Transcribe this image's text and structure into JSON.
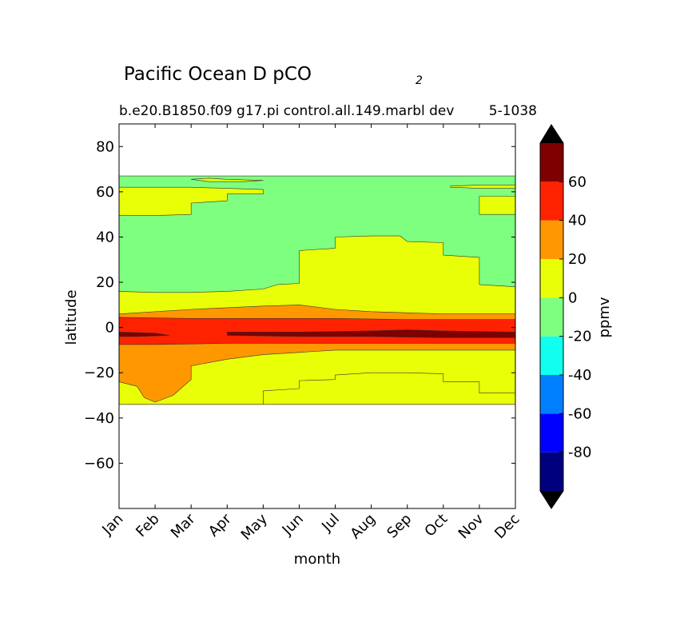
{
  "chart_data": {
    "type": "contourf",
    "title_main": "Pacific Ocean D pCO",
    "title_sub": "2",
    "subtitle_left": "b.e20.B1850.f09 g17.pi control.all.149.marbl dev",
    "subtitle_right": "5-1038",
    "xlabel": "month",
    "ylabel": "latitude",
    "x_ticks": [
      "Jan",
      "Feb",
      "Mar",
      "Apr",
      "May",
      "Jun",
      "Jul",
      "Aug",
      "Sep",
      "Oct",
      "Nov",
      "Dec"
    ],
    "x_range": [
      1,
      12
    ],
    "ylim": [
      -80,
      90
    ],
    "y_ticks": [
      80,
      60,
      40,
      20,
      0,
      -20,
      -40,
      -60
    ],
    "y_tick_labels": [
      "80",
      "60",
      "40",
      "20",
      "0",
      "−20",
      "−40",
      "−60"
    ],
    "data_lat_range": [
      -34,
      67
    ],
    "colorbar": {
      "label": "ppmv",
      "extend": "both",
      "levels": [
        -100,
        -80,
        -60,
        -40,
        -20,
        0,
        20,
        40,
        60,
        80
      ],
      "tick_values": [
        60,
        40,
        20,
        0,
        -20,
        -40,
        -60,
        -80
      ],
      "tick_labels": [
        "60",
        "40",
        "20",
        "0",
        "-20",
        "-40",
        "-60",
        "-80"
      ],
      "colors": [
        "#00007f",
        "#0000ff",
        "#007fff",
        "#10ffef",
        "#7fff7f",
        "#e9ff07",
        "#ff9800",
        "#ff2200",
        "#7f0000"
      ],
      "under_color": "#000000",
      "over_color": "#000000"
    },
    "regions": [
      {
        "name": "north-background",
        "level": "-20 to 0",
        "color": "#7fff7f",
        "points": [
          [
            1,
            67
          ],
          [
            12,
            67
          ],
          [
            12,
            -34
          ],
          [
            1,
            -34
          ]
        ]
      },
      {
        "name": "north-60n-band",
        "level": "0 to 20",
        "color": "#e9ff07",
        "points": [
          [
            1,
            62
          ],
          [
            3,
            62
          ],
          [
            4,
            61.5
          ],
          [
            5,
            61
          ],
          [
            5,
            59
          ],
          [
            4,
            59
          ],
          [
            4,
            56
          ],
          [
            3,
            55
          ],
          [
            3,
            50
          ],
          [
            2,
            49.5
          ],
          [
            1,
            49.5
          ]
        ]
      },
      {
        "name": "north-65n-patch",
        "level": "0 to 20",
        "color": "#e9ff07",
        "points": [
          [
            3,
            65.5
          ],
          [
            3.5,
            66
          ],
          [
            4,
            65.5
          ],
          [
            5,
            65
          ],
          [
            4.5,
            64.5
          ],
          [
            3.5,
            64.5
          ]
        ]
      },
      {
        "name": "northeast-62n-patch",
        "level": "0 to 20",
        "color": "#e9ff07",
        "points": [
          [
            10.2,
            62.5
          ],
          [
            11,
            63
          ],
          [
            12,
            63
          ],
          [
            12,
            61.5
          ],
          [
            11,
            61.5
          ],
          [
            10.2,
            62
          ]
        ]
      },
      {
        "name": "northeast-55n-patch",
        "level": "0 to 20",
        "color": "#e9ff07",
        "points": [
          [
            11,
            58
          ],
          [
            12,
            58
          ],
          [
            12,
            50
          ],
          [
            11,
            50
          ]
        ]
      },
      {
        "name": "subtropical-band",
        "level": "0 to 20",
        "color": "#e9ff07",
        "points": [
          [
            1,
            16
          ],
          [
            2,
            15.5
          ],
          [
            3,
            15.5
          ],
          [
            4,
            16
          ],
          [
            5,
            17
          ],
          [
            5.4,
            19
          ],
          [
            6,
            19.5
          ],
          [
            6,
            34
          ],
          [
            7,
            35
          ],
          [
            7,
            40
          ],
          [
            8,
            40.5
          ],
          [
            8.8,
            40.5
          ],
          [
            9,
            38
          ],
          [
            10,
            37.5
          ],
          [
            10,
            32
          ],
          [
            11,
            31
          ],
          [
            11,
            19
          ],
          [
            12,
            18
          ],
          [
            12,
            -34
          ],
          [
            5,
            -34
          ],
          [
            5,
            -28
          ],
          [
            6,
            -27
          ],
          [
            6,
            -23.5
          ],
          [
            7,
            -23
          ],
          [
            7,
            -21
          ],
          [
            8,
            -20
          ],
          [
            9,
            -20
          ],
          [
            10,
            -20.5
          ],
          [
            10,
            -24
          ],
          [
            11,
            -24
          ],
          [
            11,
            -29
          ],
          [
            12,
            -29
          ],
          [
            12,
            -34
          ],
          [
            1,
            -34
          ]
        ]
      },
      {
        "name": "equatorial-20-40",
        "level": "20 to 40",
        "color": "#ff9800",
        "points": [
          [
            1,
            6
          ],
          [
            3,
            8
          ],
          [
            5,
            9.5
          ],
          [
            6,
            10
          ],
          [
            7,
            8
          ],
          [
            8,
            7
          ],
          [
            10,
            6
          ],
          [
            12,
            6
          ],
          [
            12,
            -10
          ],
          [
            10,
            -10
          ],
          [
            8,
            -10
          ],
          [
            7,
            -10
          ],
          [
            6,
            -11
          ],
          [
            5,
            -12
          ],
          [
            4,
            -14
          ],
          [
            3,
            -17
          ],
          [
            3,
            -23
          ],
          [
            2.5,
            -30
          ],
          [
            2,
            -33
          ],
          [
            1.7,
            -31
          ],
          [
            1.5,
            -26
          ],
          [
            1,
            -24
          ],
          [
            1,
            -12
          ]
        ]
      },
      {
        "name": "equatorial-40-60",
        "level": "40 to 60",
        "color": "#ff2200",
        "points": [
          [
            1,
            4.5
          ],
          [
            3,
            4
          ],
          [
            5,
            4
          ],
          [
            7,
            4
          ],
          [
            9,
            3.5
          ],
          [
            12,
            3.5
          ],
          [
            12,
            -7
          ],
          [
            10,
            -7
          ],
          [
            8,
            -7
          ],
          [
            6,
            -7
          ],
          [
            4,
            -7
          ],
          [
            2,
            -7.5
          ],
          [
            1,
            -7.5
          ]
        ]
      },
      {
        "name": "equatorial-60-80",
        "level": "60 to 80",
        "color": "#7f0000",
        "points": [
          [
            1,
            -2
          ],
          [
            2,
            -2.5
          ],
          [
            2.4,
            -3.5
          ],
          [
            1.5,
            -4
          ],
          [
            1,
            -4
          ]
        ]
      },
      {
        "name": "equatorial-60-80-east",
        "level": "60 to 80",
        "color": "#7f0000",
        "points": [
          [
            4,
            -2
          ],
          [
            6,
            -2
          ],
          [
            8,
            -1.5
          ],
          [
            9,
            -1
          ],
          [
            10,
            -1.5
          ],
          [
            12,
            -2
          ],
          [
            12,
            -4.5
          ],
          [
            10,
            -4.5
          ],
          [
            8,
            -4
          ],
          [
            6,
            -4
          ],
          [
            4,
            -3.5
          ]
        ]
      }
    ]
  }
}
